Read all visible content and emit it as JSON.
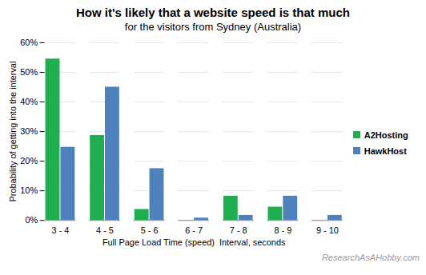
{
  "chart_data": {
    "type": "bar",
    "title": "How it's likely that a website speed is that much",
    "subtitle": "for the visitors from Sydney (Australia)",
    "x_label": "Full Page Load Time (speed)  Interval, seconds",
    "y_label": "Probability of getting into the interval",
    "annotations": [
      {
        "text": "ResearchAsAHobby.com"
      }
    ],
    "categories": [
      "3 - 4",
      "4 - 5",
      "5 - 6",
      "6 - 7",
      "7 - 8",
      "8 - 9",
      "9 - 10"
    ],
    "series": [
      {
        "name": "A2Hosting",
        "color": "#1fae51",
        "values": [
          54.5,
          28.7,
          3.7,
          0,
          8.2,
          4.5,
          0
        ]
      },
      {
        "name": "HawkHost",
        "color": "#4f81bd",
        "values": [
          24.7,
          45,
          17.5,
          0.8,
          1.7,
          8.2,
          1.7
        ]
      }
    ],
    "ylim": [
      0,
      60
    ],
    "yticks": [
      {
        "value": 0,
        "label": "0%"
      },
      {
        "value": 10,
        "label": "10%"
      },
      {
        "value": 20,
        "label": "20%"
      },
      {
        "value": 30,
        "label": "30%"
      },
      {
        "value": 40,
        "label": "40%"
      },
      {
        "value": 50,
        "label": "50%"
      },
      {
        "value": 60,
        "label": "60%"
      }
    ],
    "grid": true,
    "legend": "right"
  }
}
